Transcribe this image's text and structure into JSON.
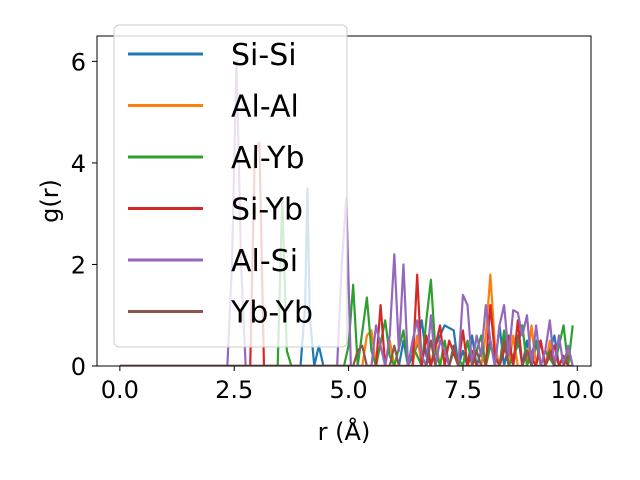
{
  "chart_data": {
    "type": "line",
    "xlabel": "r (Å)",
    "ylabel": "g(r)",
    "xlim": [
      -0.5,
      10.3
    ],
    "ylim": [
      0,
      6.5
    ],
    "xticks": [
      0.0,
      2.5,
      5.0,
      7.5,
      10.0
    ],
    "xtick_labels": [
      "0.0",
      "2.5",
      "5.0",
      "7.5",
      "10.0"
    ],
    "yticks": [
      0,
      2,
      4,
      6
    ],
    "ytick_labels": [
      "0",
      "2",
      "4",
      "6"
    ],
    "grid": false,
    "legend_position": "upper-left",
    "series": [
      {
        "name": "Si-Si",
        "color": "#1f77b4",
        "x": [
          0,
          3.95,
          4.05,
          4.1,
          4.15,
          4.25,
          4.35,
          4.45,
          4.55,
          6.1,
          6.2,
          6.3,
          6.5,
          6.6,
          6.7,
          6.8,
          6.9,
          7.0,
          7.1,
          7.2,
          7.3,
          7.4,
          7.5,
          7.6,
          7.7,
          7.8,
          7.9,
          8.0,
          8.1,
          8.2,
          8.3,
          8.4,
          8.5,
          8.6,
          8.7,
          8.8,
          8.9,
          9.0,
          9.1,
          9.2,
          9.3,
          9.4,
          9.5,
          9.6,
          9.7,
          9.8,
          9.9
        ],
        "y": [
          0,
          0,
          1.2,
          3.5,
          1.0,
          0,
          0.4,
          0,
          0,
          0,
          0.5,
          0,
          0.4,
          0.9,
          0.2,
          0,
          0.4,
          0.6,
          0.8,
          0.75,
          0.7,
          0,
          0.3,
          0,
          0.6,
          0,
          0.3,
          0,
          0.5,
          0,
          0.8,
          0,
          0.4,
          0,
          0.6,
          0,
          0.5,
          0,
          0.4,
          0.5,
          0,
          0.3,
          0.6,
          0,
          0.2,
          0,
          0
        ]
      },
      {
        "name": "Al-Al",
        "color": "#ff7f0e",
        "x": [
          0,
          5.3,
          5.4,
          5.5,
          5.6,
          5.8,
          5.9,
          6.0,
          6.4,
          6.5,
          6.6,
          6.8,
          6.9,
          7.0,
          7.2,
          7.3,
          7.4,
          7.9,
          8.0,
          8.1,
          8.2,
          8.3,
          8.5,
          8.6,
          8.7,
          8.9,
          9.0,
          9.1,
          9.3,
          9.4,
          9.5,
          9.7,
          9.8,
          9.9
        ],
        "y": [
          0,
          0,
          0.6,
          0.7,
          0,
          0,
          0.5,
          0,
          0,
          0.6,
          0,
          0,
          0.5,
          0,
          0,
          0.4,
          0,
          0,
          0.6,
          1.8,
          0.4,
          0,
          0,
          0.6,
          0,
          0,
          0.8,
          0,
          0,
          0.5,
          0,
          0,
          0.3,
          0
        ]
      },
      {
        "name": "Al-Yb",
        "color": "#2ca02c",
        "x": [
          0,
          3.45,
          3.55,
          3.65,
          3.75,
          4.9,
          5.0,
          5.1,
          5.2,
          5.4,
          5.5,
          5.6,
          5.8,
          5.9,
          6.0,
          6.2,
          6.3,
          6.4,
          6.6,
          6.7,
          6.8,
          6.9,
          7.0,
          7.1,
          7.2,
          7.3,
          7.5,
          7.6,
          7.7,
          7.9,
          8.0,
          8.1,
          8.3,
          8.4,
          8.5,
          8.7,
          8.8,
          8.9,
          9.1,
          9.2,
          9.3,
          9.5,
          9.6,
          9.7,
          9.8,
          9.9
        ],
        "y": [
          0,
          0,
          3.3,
          0.3,
          0,
          0,
          0.4,
          1.6,
          0,
          1.35,
          0.3,
          0,
          0.9,
          0.2,
          0,
          0.7,
          0,
          0.4,
          0,
          0.9,
          1.7,
          0.3,
          0,
          0.5,
          0,
          0.3,
          0,
          0.5,
          0,
          0.6,
          0,
          0.4,
          0,
          0.7,
          0,
          0.4,
          0.8,
          0,
          0.5,
          0,
          0.3,
          0,
          0.4,
          0.8,
          0,
          0.8
        ]
      },
      {
        "name": "Si-Yb",
        "color": "#d62728",
        "x": [
          0,
          2.85,
          2.95,
          3.05,
          3.15,
          5.6,
          5.7,
          5.8,
          6.4,
          6.5,
          6.6,
          6.7,
          6.8,
          7.0,
          7.1,
          7.2,
          7.4,
          7.5,
          7.6,
          7.7,
          7.8,
          8.0,
          8.1,
          8.2,
          8.3,
          8.5,
          8.6,
          8.7,
          8.8,
          8.9,
          9.1,
          9.2,
          9.3,
          9.5,
          9.6,
          9.7,
          9.8
        ],
        "y": [
          0,
          0,
          4.2,
          4.4,
          0,
          0,
          1.2,
          0,
          0,
          1.8,
          0,
          0.6,
          0,
          0.8,
          0,
          0.5,
          0,
          0.7,
          0,
          0.3,
          0,
          0,
          1.2,
          0.2,
          0,
          0.6,
          0,
          0.9,
          0,
          0.3,
          0,
          0.5,
          0,
          0.4,
          0,
          0.2,
          0
        ]
      },
      {
        "name": "Al-Si",
        "color": "#9467bd",
        "x": [
          0,
          2.35,
          2.45,
          2.55,
          2.65,
          2.75,
          4.75,
          4.85,
          4.95,
          5.05,
          5.5,
          5.6,
          5.8,
          5.9,
          6.0,
          6.1,
          6.2,
          6.3,
          6.4,
          6.5,
          6.6,
          6.7,
          6.8,
          6.9,
          7.0,
          7.1,
          7.2,
          7.3,
          7.4,
          7.5,
          7.6,
          7.7,
          7.8,
          7.9,
          8.0,
          8.1,
          8.2,
          8.3,
          8.4,
          8.5,
          8.6,
          8.7,
          8.8,
          8.9,
          9.0,
          9.1,
          9.2,
          9.3,
          9.4,
          9.5,
          9.6,
          9.7,
          9.8,
          9.9
        ],
        "y": [
          0,
          0,
          2.0,
          6.0,
          2.0,
          0,
          0,
          2.0,
          3.3,
          0,
          0,
          0.8,
          0,
          0.6,
          2.2,
          0.3,
          2.0,
          0,
          0.5,
          0.9,
          0.2,
          0,
          1.0,
          0,
          0.5,
          0.3,
          0,
          0.4,
          0,
          1.4,
          1.2,
          0,
          0.6,
          0.2,
          1.2,
          0.5,
          0,
          0.8,
          1.2,
          0.2,
          1.1,
          1.05,
          0.6,
          1.0,
          0,
          0.8,
          0,
          0.3,
          0.9,
          0,
          0.6,
          0,
          0.4,
          0
        ]
      },
      {
        "name": "Yb-Yb",
        "color": "#8c564b",
        "x": [
          0,
          5.1,
          5.2,
          5.3,
          5.4,
          5.9,
          6.0,
          6.1,
          6.7,
          6.8,
          6.9,
          7.2,
          7.3,
          7.4,
          7.7,
          7.8,
          7.9,
          8.3,
          8.4,
          8.5,
          8.8,
          8.9,
          9.0,
          9.3,
          9.4,
          9.5,
          9.7,
          9.8
        ],
        "y": [
          0,
          0,
          0.3,
          0.4,
          0,
          0,
          0.4,
          0,
          0,
          0.5,
          0,
          0,
          0.4,
          0,
          0,
          0.3,
          0,
          0,
          0.5,
          0,
          0,
          0.3,
          0,
          0,
          0.3,
          0,
          0,
          0.2
        ]
      }
    ]
  }
}
